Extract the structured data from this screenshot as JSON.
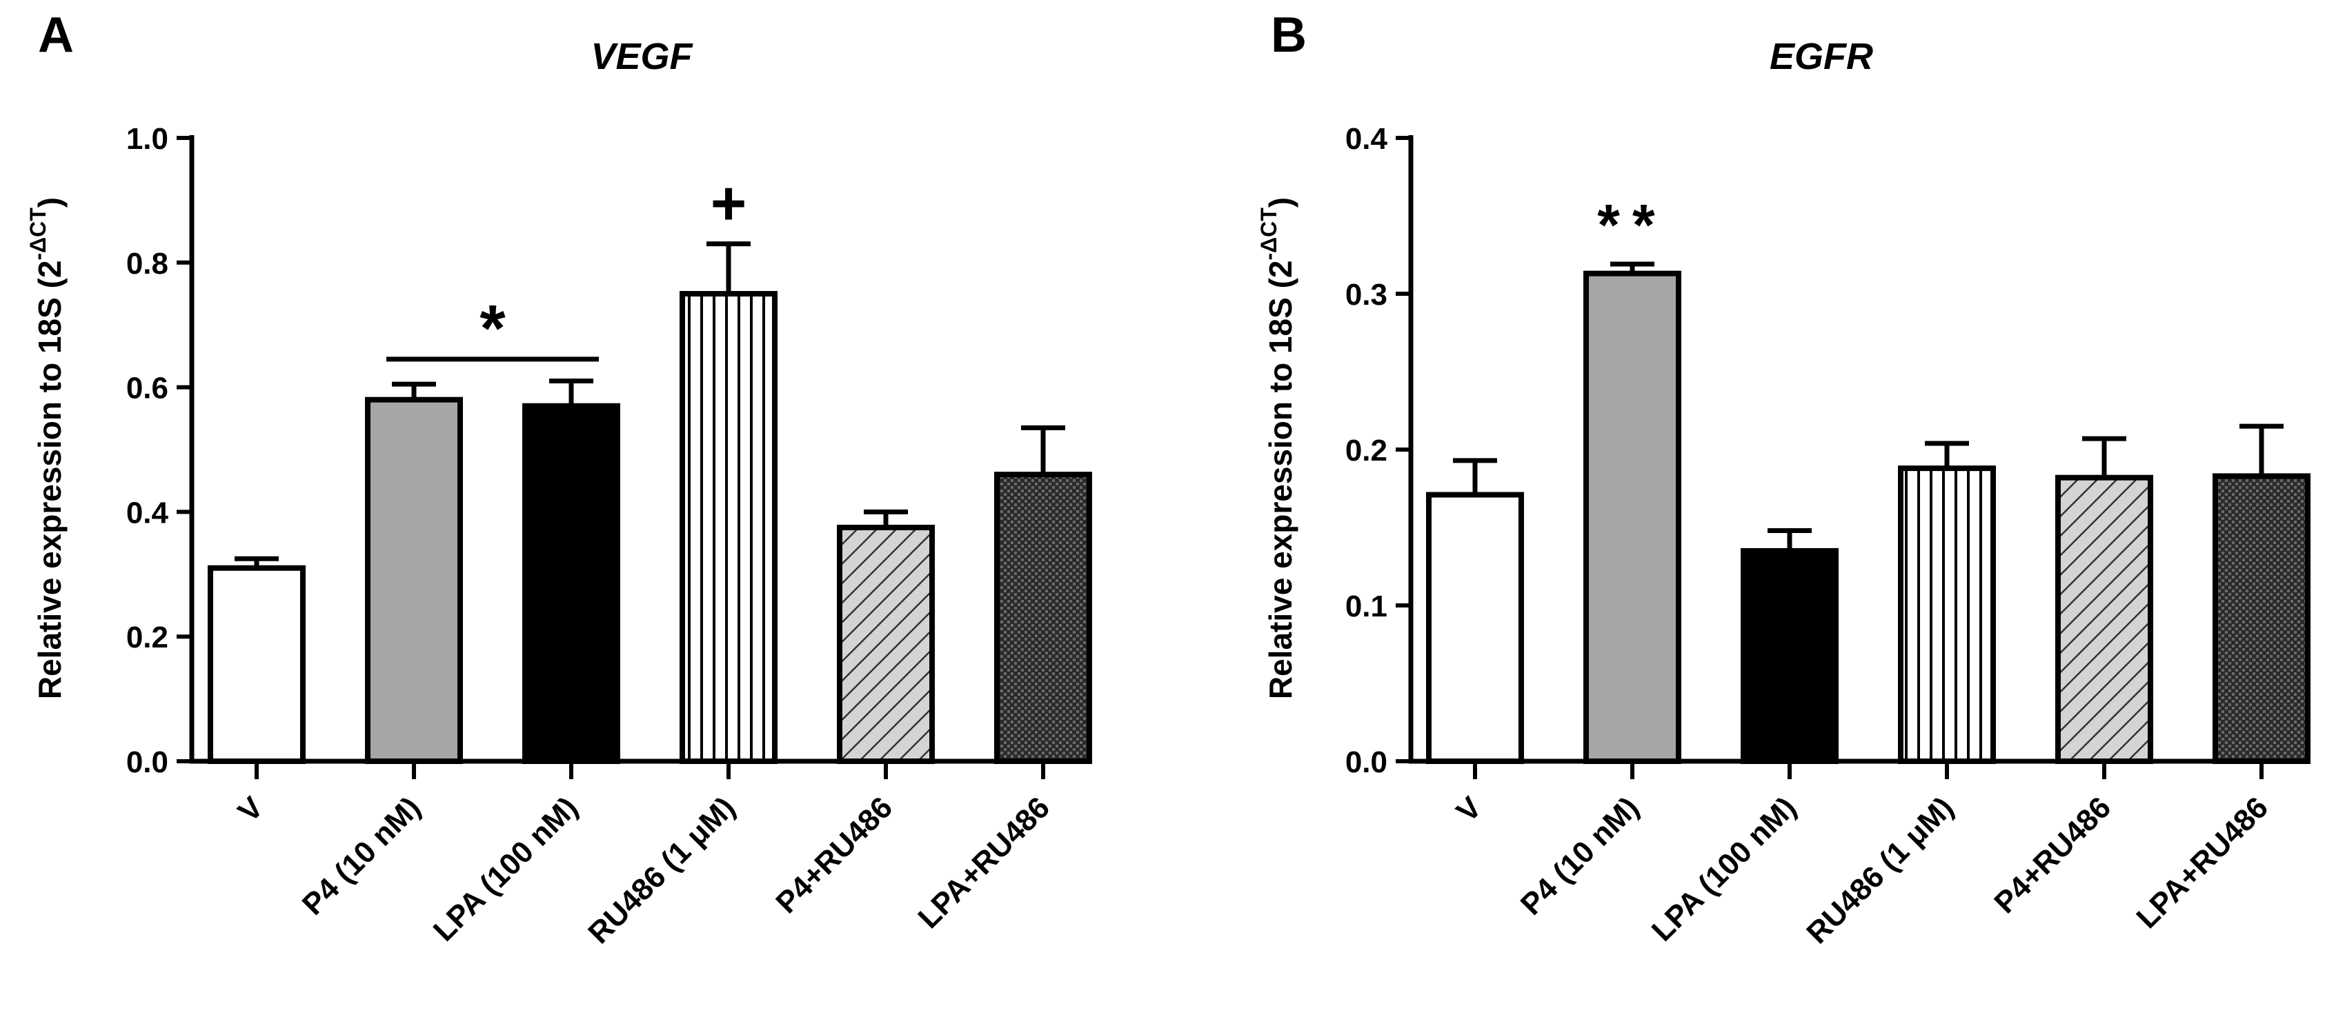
{
  "chart_data": [
    {
      "panel_label": "A",
      "type": "bar",
      "title": "VEGF",
      "ylabel_prefix": "Relative expression to 18S (2",
      "ylabel_sup": "-ΔCT",
      "ylabel_suffix": ")",
      "ylim": [
        0,
        1.0
      ],
      "yticks": [
        0.0,
        0.2,
        0.4,
        0.6,
        0.8,
        1.0
      ],
      "ytick_labels": [
        "0.0",
        "0.2",
        "0.4",
        "0.6",
        "0.8",
        "1.0"
      ],
      "categories": [
        "V",
        "P4 (10 nM)",
        "LPA (100 nM)",
        "RU486 (1 μM)",
        "P4+RU486",
        "LPA+RU486"
      ],
      "values": [
        0.31,
        0.58,
        0.57,
        0.75,
        0.375,
        0.46
      ],
      "errors": [
        0.015,
        0.025,
        0.04,
        0.08,
        0.025,
        0.075
      ],
      "fills": [
        "white",
        "gray",
        "black",
        "vstripes",
        "diag",
        "dots"
      ],
      "annotations": [
        {
          "text": "*",
          "bracket": [
            1,
            2
          ],
          "y": 0.645
        },
        {
          "text": "+",
          "bar": 3
        }
      ]
    },
    {
      "panel_label": "B",
      "type": "bar",
      "title": "EGFR",
      "ylabel_prefix": "Relative expression to 18S (2",
      "ylabel_sup": "-ΔCT",
      "ylabel_suffix": ")",
      "ylim": [
        0,
        0.4
      ],
      "yticks": [
        0.0,
        0.1,
        0.2,
        0.3,
        0.4
      ],
      "ytick_labels": [
        "0.0",
        "0.1",
        "0.2",
        "0.3",
        "0.4"
      ],
      "categories": [
        "V",
        "P4 (10 nM)",
        "LPA (100 nM)",
        "RU486 (1 μM)",
        "P4+RU486",
        "LPA+RU486"
      ],
      "values": [
        0.171,
        0.313,
        0.135,
        0.188,
        0.182,
        0.183
      ],
      "errors": [
        0.022,
        0.006,
        0.013,
        0.016,
        0.025,
        0.032
      ],
      "fills": [
        "white",
        "gray",
        "black",
        "vstripes",
        "diag",
        "dots"
      ],
      "annotations": [
        {
          "text": "**",
          "bar": 1
        }
      ]
    }
  ]
}
